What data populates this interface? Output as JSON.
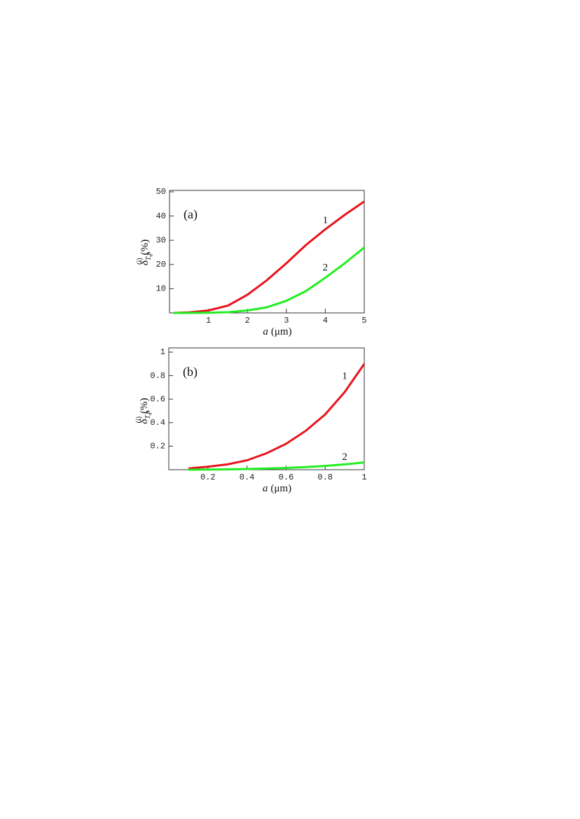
{
  "chart_data": [
    {
      "type": "line",
      "panel": "(a)",
      "xlabel": {
        "symbol": "a",
        "unit": "(μm)"
      },
      "ylabel": {
        "symbol": "δ",
        "superscript": "(i)",
        "subscript": "T,p",
        "unit": "(%)"
      },
      "x": [
        0.1,
        0.5,
        1,
        1.5,
        2,
        2.5,
        3,
        3.5,
        4,
        4.5,
        5
      ],
      "series": [
        {
          "name": "1",
          "color": "#e8141c",
          "values": [
            0,
            0.2,
            1,
            3,
            7.5,
            13.5,
            20.5,
            28,
            34.5,
            40.5,
            46
          ]
        },
        {
          "name": "2",
          "color": "#22ee22",
          "values": [
            0,
            0,
            0.1,
            0.3,
            1,
            2.3,
            5,
            9,
            14.5,
            20.5,
            27
          ]
        }
      ],
      "xlim": [
        0,
        5
      ],
      "ylim": [
        0,
        50
      ],
      "xticks": [
        1,
        2,
        3,
        4,
        5
      ],
      "yticks": [
        10,
        20,
        30,
        40,
        50
      ]
    },
    {
      "type": "line",
      "panel": "(b)",
      "xlabel": {
        "symbol": "a",
        "unit": "(μm)"
      },
      "ylabel": {
        "symbol": "δ",
        "superscript": "(i)",
        "subscript": "T,p",
        "unit": "(%)"
      },
      "x": [
        0.1,
        0.2,
        0.3,
        0.4,
        0.5,
        0.6,
        0.7,
        0.8,
        0.9,
        1
      ],
      "series": [
        {
          "name": "1",
          "color": "#e8141c",
          "values": [
            0.01,
            0.025,
            0.045,
            0.08,
            0.14,
            0.22,
            0.33,
            0.47,
            0.66,
            0.9
          ]
        },
        {
          "name": "2",
          "color": "#22ee22",
          "values": [
            0,
            0.001,
            0.003,
            0.006,
            0.01,
            0.015,
            0.022,
            0.032,
            0.045,
            0.062
          ]
        }
      ],
      "xlim": [
        0,
        1
      ],
      "ylim": [
        0,
        1
      ],
      "xticks": [
        0.2,
        0.4,
        0.6,
        0.8,
        1
      ],
      "yticks": [
        0.2,
        0.4,
        0.6,
        0.8,
        1
      ]
    }
  ]
}
